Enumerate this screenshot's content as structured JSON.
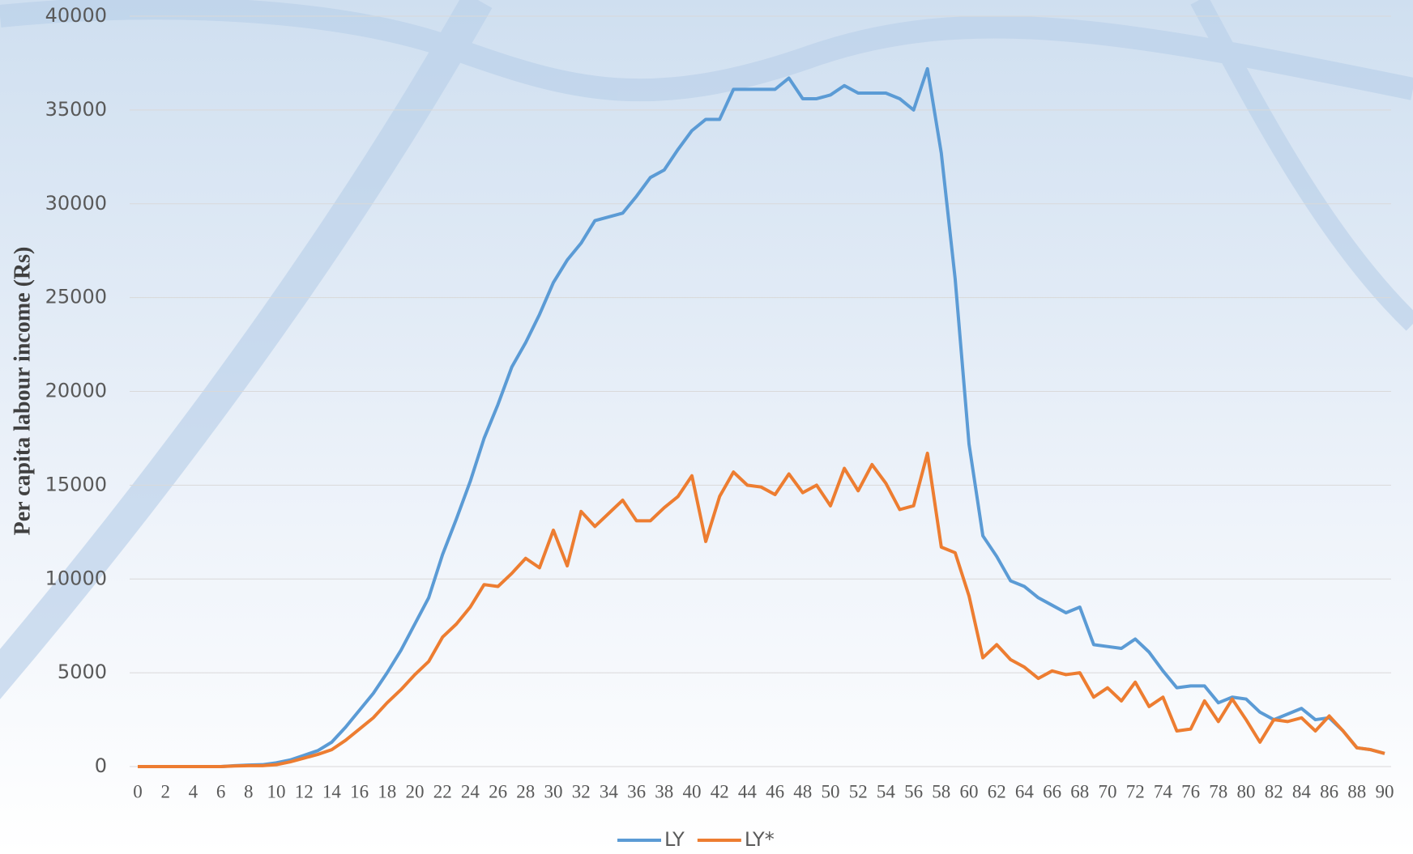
{
  "chart_data": {
    "type": "line",
    "y_label": "Per capita labour income (Rs)",
    "x": [
      0,
      1,
      2,
      3,
      4,
      5,
      6,
      7,
      8,
      9,
      10,
      11,
      12,
      13,
      14,
      15,
      16,
      17,
      18,
      19,
      20,
      21,
      22,
      23,
      24,
      25,
      26,
      27,
      28,
      29,
      30,
      31,
      32,
      33,
      34,
      35,
      36,
      37,
      38,
      39,
      40,
      41,
      42,
      43,
      44,
      45,
      46,
      47,
      48,
      49,
      50,
      51,
      52,
      53,
      54,
      55,
      56,
      57,
      58,
      59,
      60,
      61,
      62,
      63,
      64,
      65,
      66,
      67,
      68,
      69,
      70,
      71,
      72,
      73,
      74,
      75,
      76,
      77,
      78,
      79,
      80,
      81,
      82,
      83,
      84,
      85,
      86,
      87,
      88,
      89,
      90
    ],
    "series": [
      {
        "name": "LY",
        "color": "#5b9bd5",
        "values": [
          0,
          0,
          0,
          0,
          0,
          0,
          0,
          50,
          80,
          100,
          200,
          350,
          600,
          850,
          1300,
          2100,
          3000,
          3900,
          5000,
          6200,
          7600,
          9000,
          11300,
          13200,
          15200,
          17500,
          19300,
          21300,
          22600,
          24100,
          25800,
          27000,
          27900,
          29100,
          29300,
          29500,
          30400,
          31400,
          31800,
          32900,
          33900,
          34500,
          34500,
          36100,
          36100,
          36100,
          36100,
          36700,
          35600,
          35600,
          35800,
          36300,
          35900,
          35900,
          35900,
          35600,
          35000,
          37200,
          32700,
          26000,
          17200,
          12300,
          11200,
          9900,
          9600,
          9000,
          8600,
          8200,
          8500,
          6500,
          6400,
          6300,
          6800,
          6100,
          5100,
          4200,
          4300,
          4300,
          3400,
          3700,
          3600,
          2900,
          2500,
          2800,
          3100,
          2500,
          2600,
          1900,
          1000,
          900,
          700
        ]
      },
      {
        "name": "LY*",
        "color": "#ed7d31",
        "values": [
          0,
          0,
          0,
          0,
          0,
          0,
          0,
          30,
          50,
          50,
          100,
          250,
          450,
          650,
          900,
          1400,
          2000,
          2600,
          3400,
          4100,
          4900,
          5600,
          6900,
          7600,
          8500,
          9700,
          9600,
          10300,
          11100,
          10600,
          12600,
          10700,
          13600,
          12800,
          13500,
          14200,
          13100,
          13100,
          13800,
          14400,
          15500,
          12000,
          14400,
          15700,
          15000,
          14900,
          14500,
          15600,
          14600,
          15000,
          13900,
          15900,
          14700,
          16100,
          15100,
          13700,
          13900,
          16700,
          11700,
          11400,
          9100,
          5800,
          6500,
          5700,
          5300,
          4700,
          5100,
          4900,
          5000,
          3700,
          4200,
          3500,
          4500,
          3200,
          3700,
          1900,
          2000,
          3500,
          2400,
          3600,
          2500,
          1300,
          2500,
          2400,
          2600,
          1900,
          2700,
          1900,
          1000,
          900,
          700
        ]
      }
    ],
    "xlim": [
      0,
      90
    ],
    "xticks": [
      0,
      2,
      4,
      6,
      8,
      10,
      12,
      14,
      16,
      18,
      20,
      22,
      24,
      26,
      28,
      30,
      32,
      34,
      36,
      38,
      40,
      42,
      44,
      46,
      48,
      50,
      52,
      54,
      56,
      58,
      60,
      62,
      64,
      66,
      68,
      70,
      72,
      74,
      76,
      78,
      80,
      82,
      84,
      86,
      88,
      90
    ],
    "ylim": [
      0,
      40000
    ],
    "yticks": [
      0,
      5000,
      10000,
      15000,
      20000,
      25000,
      30000,
      35000,
      40000
    ],
    "grid": true,
    "legend": "bottom"
  }
}
